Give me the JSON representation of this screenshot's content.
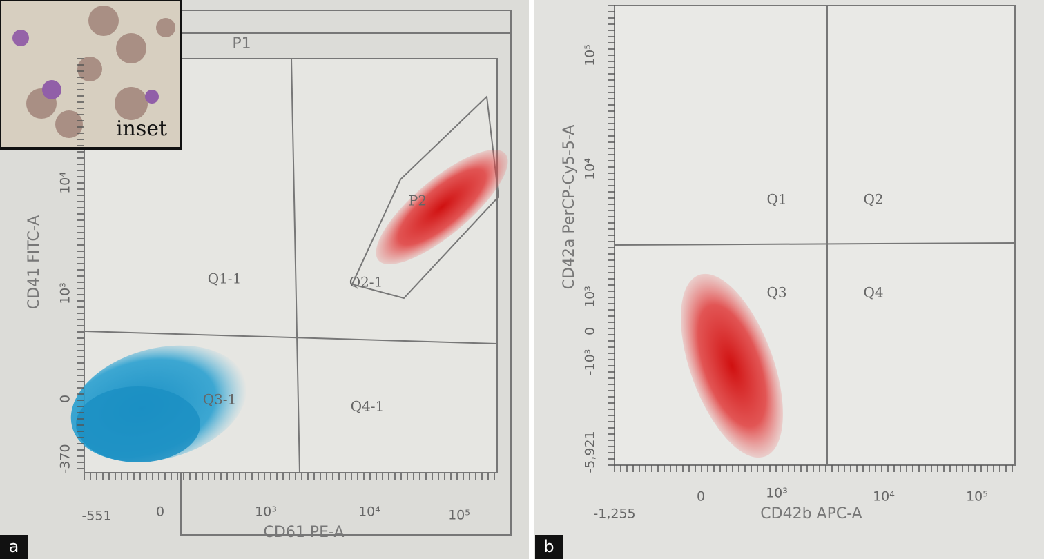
{
  "panels": [
    {
      "letter": "a",
      "inset_label": "inset",
      "gate_label": "P1",
      "subgate_label": "P2",
      "quadrants": [
        "Q1-1",
        "Q2-1",
        "Q3-1",
        "Q4-1"
      ],
      "x_axis": {
        "title": "CD61 PE-A",
        "ticks": [
          "-551",
          "0",
          "10³",
          "10⁴",
          "10⁵"
        ]
      },
      "y_axis": {
        "title": "CD41 FITC-A",
        "ticks": [
          "-370",
          "0",
          "10³",
          "10⁴"
        ]
      }
    },
    {
      "letter": "b",
      "quadrants": [
        "Q1",
        "Q2",
        "Q3",
        "Q4"
      ],
      "x_axis": {
        "title": "CD42b APC-A",
        "ticks": [
          "-1,255",
          "0",
          "10³",
          "10⁴",
          "10⁵"
        ]
      },
      "y_axis": {
        "title": "CD42a PerCP-Cy5-5-A",
        "ticks": [
          "-5,921",
          "-10³",
          "0",
          "10³",
          "10⁴",
          "10⁵"
        ]
      }
    }
  ]
}
